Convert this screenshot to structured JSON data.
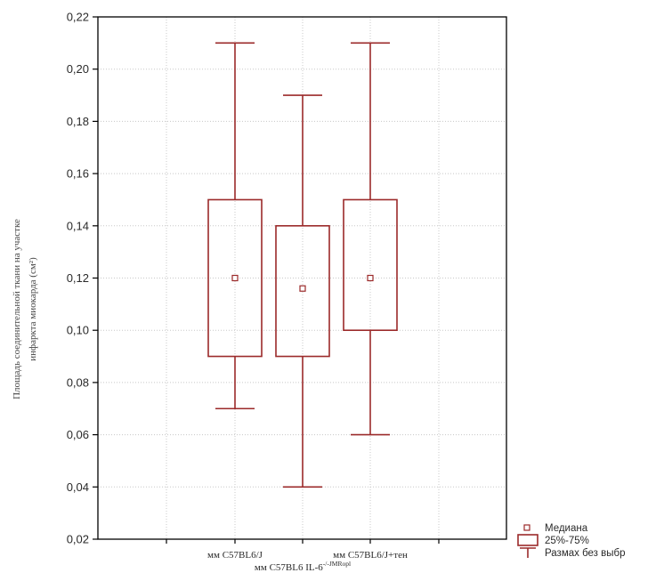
{
  "chart_data": {
    "type": "boxplot",
    "ylabel_lines": [
      "Площадь соединительной ткани на участке",
      "инфаркта миокарда (см²)"
    ],
    "ylim": [
      0.02,
      0.22
    ],
    "y_ticks": [
      0.02,
      0.04,
      0.06,
      0.08,
      0.1,
      0.12,
      0.14,
      0.16,
      0.18,
      0.2,
      0.22
    ],
    "y_tick_labels": [
      "0,02",
      "0,04",
      "0,06",
      "0,08",
      "0,10",
      "0,12",
      "0,14",
      "0,16",
      "0,18",
      "0,20",
      "0,22"
    ],
    "grid": true,
    "categories": [
      {
        "label": "мм C57BL6/J",
        "label_row": 1
      },
      {
        "label": "мм C57BL6 IL-6",
        "label_sup": "-/-JMRopl",
        "label_row": 2
      },
      {
        "label": "мм C57BL6/J+тен",
        "label_row": 1
      }
    ],
    "boxes": [
      {
        "median": 0.12,
        "q1": 0.09,
        "q3": 0.15,
        "min": 0.07,
        "max": 0.21
      },
      {
        "median": 0.116,
        "q1": 0.09,
        "q3": 0.14,
        "min": 0.04,
        "max": 0.19
      },
      {
        "median": 0.12,
        "q1": 0.1,
        "q3": 0.15,
        "min": 0.06,
        "max": 0.21
      }
    ],
    "legend": {
      "position": "bottom-right",
      "items": [
        {
          "symbol": "median-square",
          "label": "Медиана"
        },
        {
          "symbol": "box",
          "label": "25%-75%"
        },
        {
          "symbol": "whisker",
          "label": "Размах без выбр"
        }
      ]
    },
    "colors": {
      "box": "#9b2a2a",
      "axis": "#000000",
      "grid": "#c8c8c8"
    }
  }
}
